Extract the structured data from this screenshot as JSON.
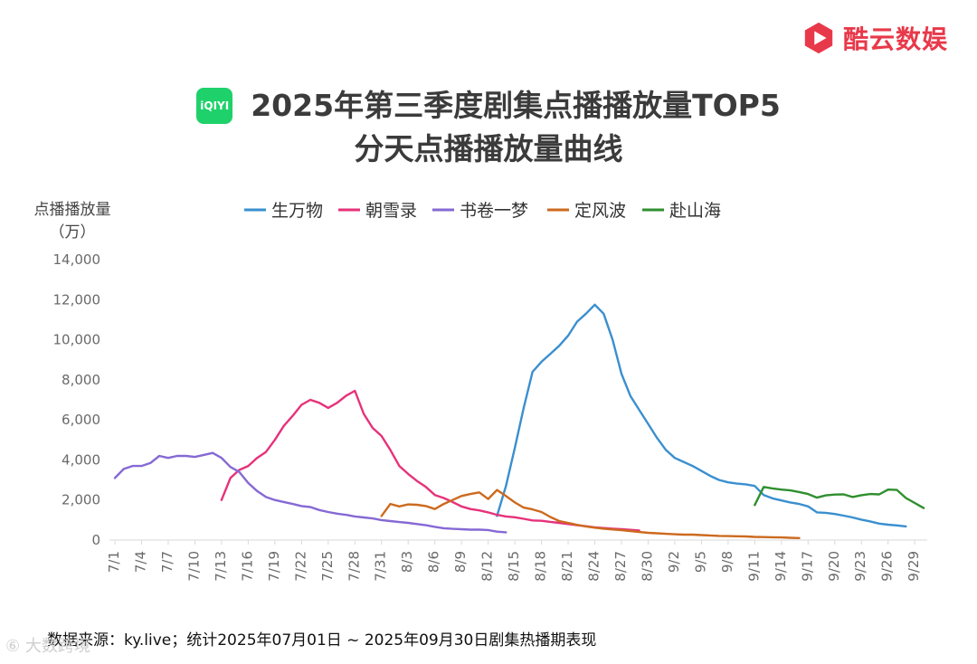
{
  "brand": {
    "name": "酷云数娱",
    "logo_icon": "play-hexagon-icon",
    "color": "#e8394a"
  },
  "platform_logo": {
    "text": "iQIYI",
    "color": "#1fd16a"
  },
  "title": {
    "line1": "2025年第三季度剧集点播播放量TOP5",
    "line2": "分天点播播放量曲线"
  },
  "footer": {
    "source": "数据来源：ky.live；统计2025年07月01日 ~ 2025年09月30日剧集热播期表现",
    "watermark": "⑥ 大数跨境"
  },
  "chart_data": {
    "type": "line",
    "ylabel": "点播播放量",
    "yunit": "（万）",
    "ylim": [
      0,
      14000
    ],
    "yticks": [
      0,
      2000,
      4000,
      6000,
      8000,
      10000,
      12000,
      14000
    ],
    "ytick_labels": [
      "0",
      "2,000",
      "4,000",
      "6,000",
      "8,000",
      "10,000",
      "12,000",
      "14,000"
    ],
    "x_start_day": 1,
    "xtick_labels": [
      "7/1",
      "7/4",
      "7/7",
      "7/10",
      "7/13",
      "7/16",
      "7/19",
      "7/22",
      "7/25",
      "7/28",
      "7/31",
      "8/3",
      "8/6",
      "8/9",
      "8/12",
      "8/15",
      "8/18",
      "8/21",
      "8/24",
      "8/27",
      "8/30",
      "9/2",
      "9/5",
      "9/8",
      "9/11",
      "9/14",
      "9/17",
      "9/20",
      "9/23",
      "9/26",
      "9/29"
    ],
    "grid": false,
    "legend_position": "top",
    "series": [
      {
        "name": "生万物",
        "color": "#3a8fcf",
        "start_day": 44,
        "values": [
          1200,
          2700,
          4600,
          6600,
          8400,
          8900,
          9300,
          9700,
          10200,
          10900,
          11300,
          11750,
          11300,
          10000,
          8300,
          7200,
          6500,
          5800,
          5100,
          4500,
          4100,
          3900,
          3700,
          3450,
          3200,
          3000,
          2880,
          2820,
          2780,
          2700,
          2250,
          2080,
          1980,
          1880,
          1800,
          1680,
          1380,
          1360,
          1300,
          1220,
          1130,
          1020,
          930,
          820,
          770,
          730,
          680
        ]
      },
      {
        "name": "朝雪录",
        "color": "#e6327a",
        "start_day": 13,
        "values": [
          2000,
          3100,
          3500,
          3700,
          4100,
          4400,
          5000,
          5700,
          6200,
          6750,
          7000,
          6850,
          6600,
          6850,
          7200,
          7450,
          6300,
          5600,
          5200,
          4500,
          3700,
          3300,
          2950,
          2650,
          2250,
          2100,
          1900,
          1680,
          1550,
          1480,
          1380,
          1260,
          1180,
          1140,
          1060,
          980,
          960,
          910,
          860,
          800,
          740,
          690,
          630,
          600,
          570,
          540,
          510,
          480
        ]
      },
      {
        "name": "书卷一梦",
        "color": "#8569d4",
        "start_day": 1,
        "values": [
          3100,
          3550,
          3700,
          3700,
          3850,
          4200,
          4100,
          4200,
          4200,
          4150,
          4250,
          4350,
          4100,
          3650,
          3400,
          2850,
          2450,
          2150,
          2000,
          1900,
          1800,
          1700,
          1650,
          1500,
          1400,
          1320,
          1260,
          1180,
          1130,
          1080,
          1000,
          950,
          900,
          860,
          800,
          740,
          660,
          590,
          560,
          540,
          520,
          520,
          500,
          420,
          390
        ]
      },
      {
        "name": "定风波",
        "color": "#cc6a1e",
        "start_day": 31,
        "values": [
          1200,
          1800,
          1680,
          1780,
          1760,
          1700,
          1550,
          1800,
          2000,
          2200,
          2300,
          2380,
          2050,
          2500,
          2200,
          1880,
          1620,
          1530,
          1400,
          1150,
          950,
          860,
          760,
          680,
          620,
          570,
          530,
          490,
          450,
          400,
          360,
          340,
          310,
          290,
          270,
          270,
          250,
          230,
          210,
          200,
          190,
          180,
          160,
          150,
          140,
          130,
          115,
          100
        ]
      },
      {
        "name": "赴山海",
        "color": "#2f8f2f",
        "start_day": 73,
        "values": [
          1750,
          2650,
          2580,
          2520,
          2480,
          2400,
          2300,
          2120,
          2230,
          2270,
          2280,
          2150,
          2240,
          2300,
          2280,
          2520,
          2500,
          2100,
          1850,
          1600
        ]
      }
    ]
  }
}
